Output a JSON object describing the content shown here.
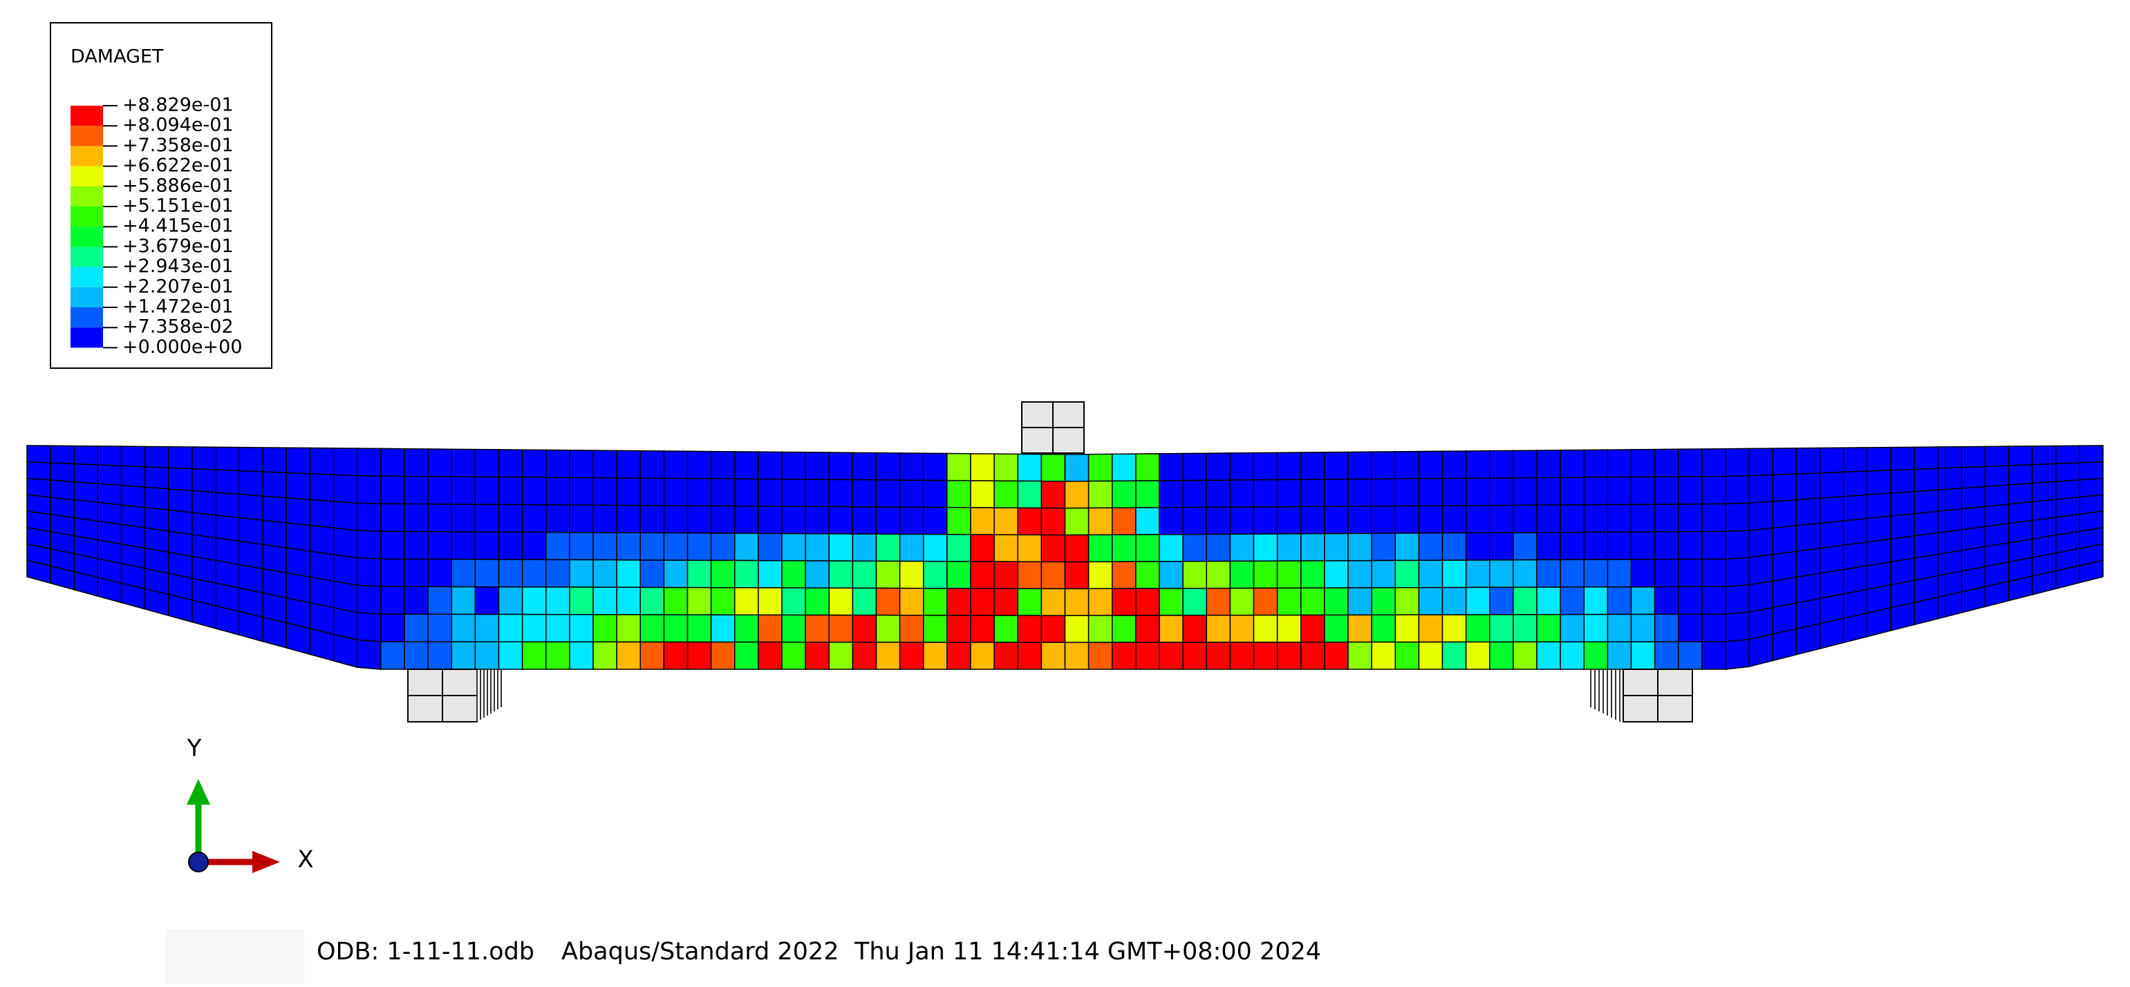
{
  "legend": {
    "title": "DAMAGET",
    "labels": [
      "+8.829e-01",
      "+8.094e-01",
      "+7.358e-01",
      "+6.622e-01",
      "+5.886e-01",
      "+5.151e-01",
      "+4.415e-01",
      "+3.679e-01",
      "+2.943e-01",
      "+2.207e-01",
      "+1.472e-01",
      "+7.358e-02",
      "+0.000e+00"
    ],
    "colors": [
      "#ff0000",
      "#ff5d00",
      "#ffb900",
      "#e8ff00",
      "#8bff00",
      "#2eff00",
      "#00ff2e",
      "#00ff8b",
      "#00e8ff",
      "#00b9ff",
      "#005dff",
      "#0000ff"
    ]
  },
  "triad": {
    "y_label": "Y",
    "x_label": "X"
  },
  "footer": {
    "odb": "ODB: 1-11-11.odb",
    "solver": "Abaqus/Standard 2022",
    "date": "Thu Jan 11 14:41:14 GMT+08:00 2024"
  }
}
